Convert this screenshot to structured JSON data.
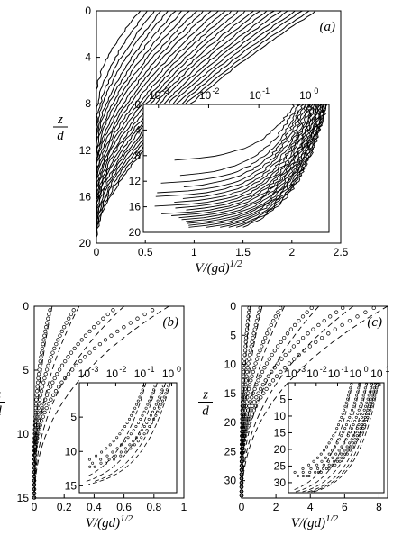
{
  "chart_data": [
    {
      "panel": "(a)",
      "type": "line",
      "xlabel": "V/(gd)^1/2",
      "ylabel_num": "z",
      "ylabel_den": "d",
      "xlim": [
        0,
        2.5
      ],
      "ylim": [
        0,
        20
      ],
      "y_inverted": true,
      "x_ticks": [
        "0",
        "0.5",
        "1",
        "1.5",
        "2",
        "2.5"
      ],
      "y_ticks": [
        "0",
        "4",
        "8",
        "12",
        "16",
        "20"
      ],
      "family": {
        "count": 26,
        "surface_velocity_range": [
          0.45,
          2.25
        ],
        "depth_range": [
          7,
          19.5
        ]
      },
      "inset": {
        "x_scale": "log",
        "xlim": [
          0.0005,
          2.5
        ],
        "ylim": [
          0,
          20
        ],
        "x_ticks": [
          "10",
          "10",
          "10",
          "10"
        ],
        "x_tick_exponents": [
          "-3",
          "-2",
          "-1",
          "0"
        ],
        "y_ticks": [
          "0",
          "4",
          "8",
          "12",
          "16",
          "20"
        ]
      }
    },
    {
      "panel": "(b)",
      "type": "scatter",
      "xlabel": "V/(gd)^1/2",
      "ylabel_num": "z",
      "ylabel_den": "d",
      "xlim": [
        0,
        1
      ],
      "ylim": [
        0,
        15
      ],
      "y_inverted": true,
      "x_ticks": [
        "0",
        "0.2",
        "0.4",
        "0.6",
        "0.8",
        "1"
      ],
      "y_ticks": [
        "0",
        "5",
        "10",
        "15"
      ],
      "series": [
        {
          "surface_velocity": 0.9,
          "depth": 15
        },
        {
          "surface_velocity": 0.6,
          "depth": 15
        },
        {
          "surface_velocity": 0.3,
          "depth": 15
        },
        {
          "surface_velocity": 0.12,
          "depth": 15
        }
      ],
      "inset": {
        "x_scale": "log",
        "xlim": [
          0.0005,
          1.5
        ],
        "ylim": [
          0,
          16
        ],
        "x_ticks": [
          "10",
          "10",
          "10",
          "10"
        ],
        "x_tick_exponents": [
          "-3",
          "-2",
          "-1",
          "0"
        ],
        "y_ticks": [
          "5",
          "10",
          "15"
        ]
      }
    },
    {
      "panel": "(c)",
      "type": "scatter",
      "xlabel": "V/(gd)^1/2",
      "ylabel_num": "z",
      "ylabel_den": "d",
      "xlim": [
        0,
        8.5
      ],
      "ylim": [
        0,
        33
      ],
      "y_inverted": true,
      "x_ticks": [
        "0",
        "2",
        "4",
        "6",
        "8"
      ],
      "y_ticks": [
        "0",
        "5",
        "10",
        "15",
        "20",
        "25",
        "30"
      ],
      "series": [
        {
          "surface_velocity": 8.5,
          "depth": 33
        },
        {
          "surface_velocity": 6.5,
          "depth": 33
        },
        {
          "surface_velocity": 4.5,
          "depth": 33
        },
        {
          "surface_velocity": 2.5,
          "depth": 33
        },
        {
          "surface_velocity": 1.2,
          "depth": 33
        },
        {
          "surface_velocity": 0.5,
          "depth": 33
        }
      ],
      "inset": {
        "x_scale": "log",
        "xlim": [
          0.0005,
          15
        ],
        "ylim": [
          0,
          33
        ],
        "x_ticks": [
          "10",
          "10",
          "10",
          "10",
          "10"
        ],
        "x_tick_exponents": [
          "-3",
          "-2",
          "-1",
          "0",
          "1"
        ],
        "y_ticks": [
          "5",
          "10",
          "15",
          "20",
          "25",
          "30"
        ]
      }
    }
  ]
}
